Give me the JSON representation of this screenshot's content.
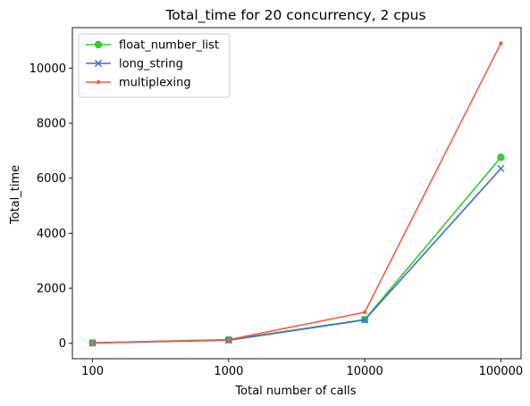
{
  "chart_data": {
    "type": "line",
    "title": "Total_time for 20 concurrency, 2 cpus",
    "xlabel": "Total number of calls",
    "ylabel": "Total_time",
    "categories": [
      "100",
      "1000",
      "10000",
      "100000"
    ],
    "ylim": [
      -560,
      11470
    ],
    "yticks": [
      0,
      2000,
      4000,
      6000,
      8000,
      10000
    ],
    "grid": false,
    "legend_position": "upper-left",
    "series": [
      {
        "name": "float_number_list",
        "values": [
          15,
          130,
          860,
          6760
        ],
        "color": "#32cd32",
        "marker": "circle"
      },
      {
        "name": "long_string",
        "values": [
          10,
          110,
          850,
          6350
        ],
        "color": "#4169e1",
        "marker": "x"
      },
      {
        "name": "multiplexing",
        "values": [
          20,
          130,
          1130,
          10900
        ],
        "color": "#f0603f",
        "marker": "point"
      }
    ]
  }
}
